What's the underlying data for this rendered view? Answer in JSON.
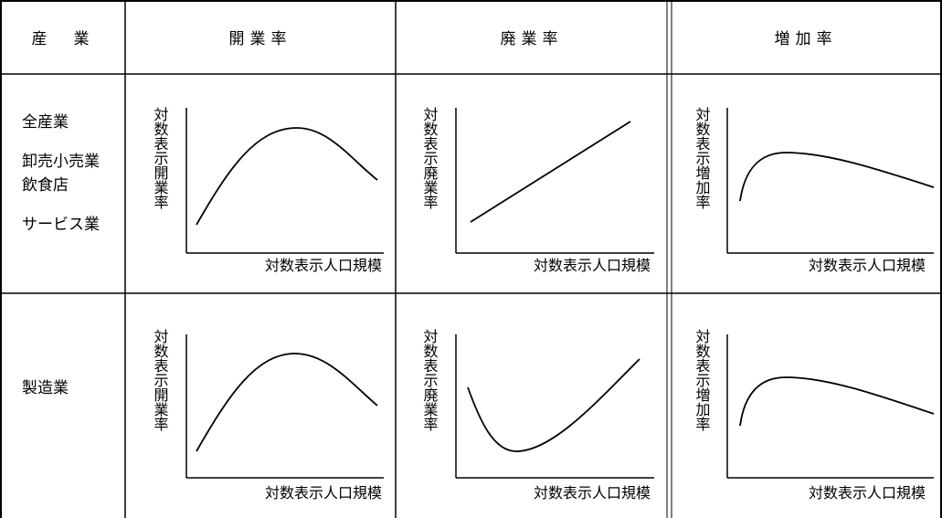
{
  "table": {
    "headers": {
      "industry": "産　業",
      "opening": "開業率",
      "closing": "廃業率",
      "growth": "増加率"
    },
    "rows": [
      {
        "industries": [
          "全産業",
          "卸売小売業",
          "飲食店",
          "サービス業"
        ],
        "charts": {
          "opening": {
            "ylabel": "対数表示開業率",
            "xlabel": "対数表示人口規模",
            "shape": "inverted-u"
          },
          "closing": {
            "ylabel": "対数表示廃業率",
            "xlabel": "対数表示人口規模",
            "shape": "increasing-line"
          },
          "growth": {
            "ylabel": "対数表示増加率",
            "xlabel": "対数表示人口規模",
            "shape": "early-peak-then-decline"
          }
        }
      },
      {
        "industries": [
          "製造業"
        ],
        "charts": {
          "opening": {
            "ylabel": "対数表示開業率",
            "xlabel": "対数表示人口規模",
            "shape": "inverted-u"
          },
          "closing": {
            "ylabel": "対数表示廃業率",
            "xlabel": "対数表示人口規模",
            "shape": "u-shape"
          },
          "growth": {
            "ylabel": "対数表示増加率",
            "xlabel": "対数表示人口規模",
            "shape": "early-peak-then-decline"
          }
        }
      }
    ]
  }
}
